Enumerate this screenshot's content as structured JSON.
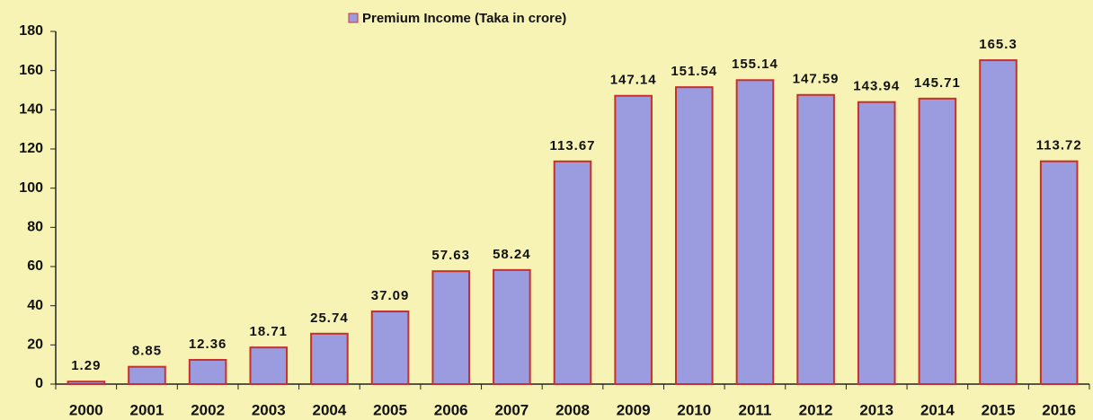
{
  "chart_data": {
    "type": "bar",
    "categories": [
      "2000",
      "2001",
      "2002",
      "2003",
      "2004",
      "2005",
      "2006",
      "2007",
      "2008",
      "2009",
      "2010",
      "2011",
      "2012",
      "2013",
      "2014",
      "2015",
      "2016"
    ],
    "series": [
      {
        "name": "Premium Income (Taka in crore)",
        "color": "#9b9be0",
        "values": [
          1.29,
          8.85,
          12.36,
          18.71,
          25.74,
          37.09,
          57.63,
          58.24,
          113.67,
          147.14,
          151.54,
          155.14,
          147.59,
          143.94,
          145.71,
          165.3,
          113.72
        ]
      }
    ],
    "ylim": [
      0,
      180
    ],
    "yticks": [
      0,
      20,
      40,
      60,
      80,
      100,
      120,
      140,
      160,
      180
    ],
    "grid": false
  }
}
